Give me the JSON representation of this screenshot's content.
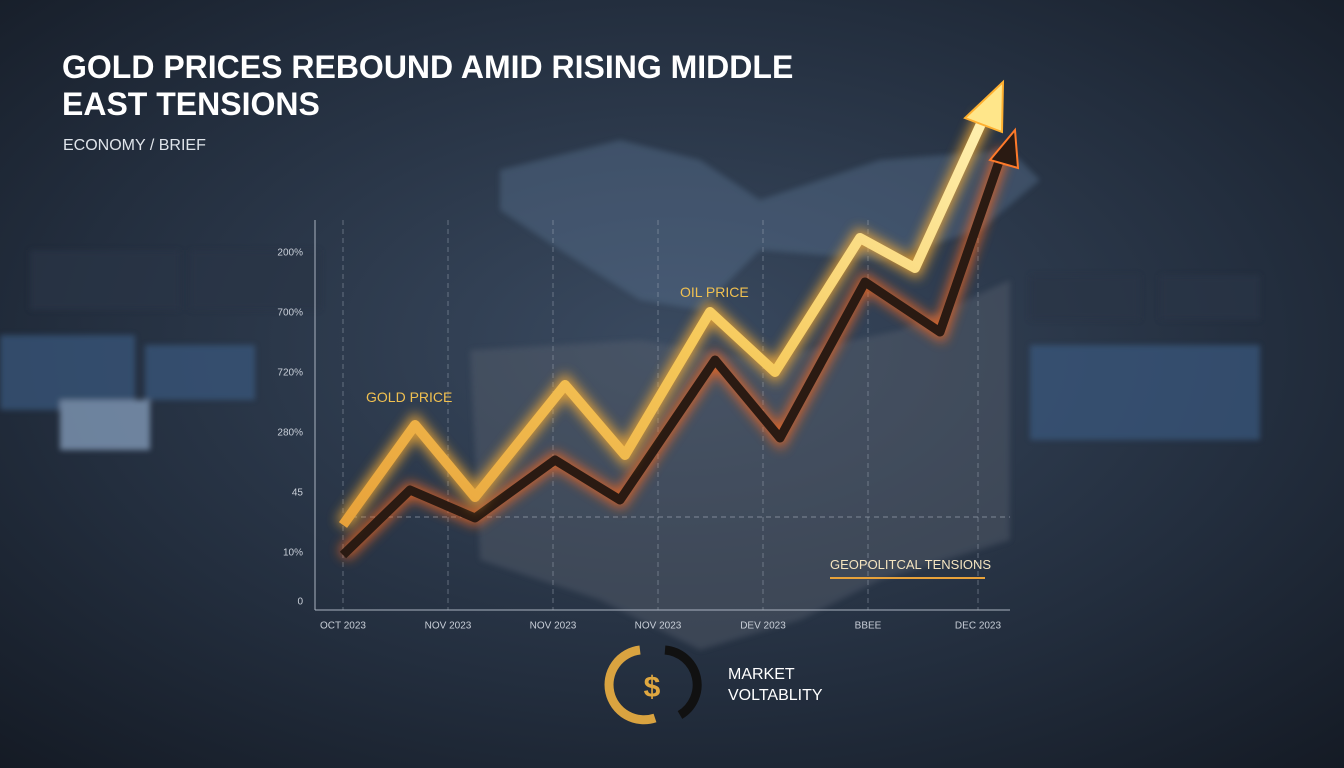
{
  "header": {
    "title_lines": [
      "GOLD PRICES REBOUND AMID RISING MIDDLE",
      "EAST TENSIONS"
    ],
    "subtitle": "ECONOMY / BRIEF"
  },
  "chart": {
    "series_labels": [
      "GOLD PRICE",
      "OIL PRICE"
    ],
    "y_axis_labels": [
      "200%",
      "700%",
      "720%",
      "280%",
      "45",
      "10%",
      "0"
    ],
    "x_axis_labels": [
      "OCT 2023",
      "NOV 2023",
      "NOV 2023",
      "NOV 2023",
      "DEV 2023",
      "BBEE",
      "DEC 2023"
    ],
    "annotation": "GEOPOLITCAL TENSIONS"
  },
  "badge": {
    "lines": [
      "MARKET",
      "VOLTABLITY"
    ]
  }
}
